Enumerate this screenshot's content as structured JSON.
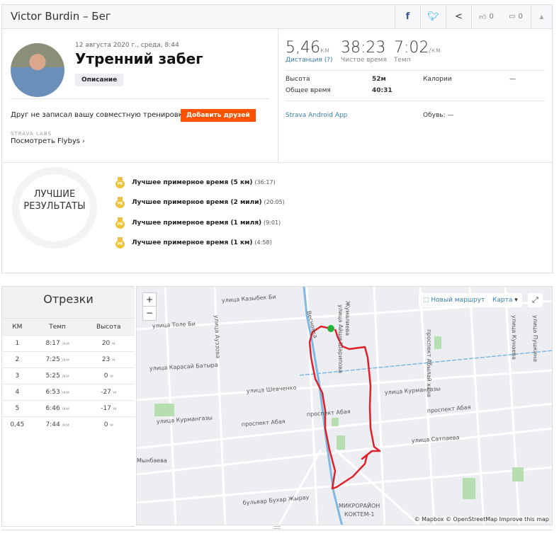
{
  "header": {
    "title": "Victor Burdin – Бег",
    "likes": "0",
    "comments": "0"
  },
  "activity": {
    "date": "12 августа 2020 г., среда, 8:44",
    "name": "Утренний забег",
    "description_label": "Описание",
    "friend_prompt": "Друг не записал вашу совместную тренировку?",
    "add_friends_label": "Добавить друзей",
    "labs_label": "STRAVA LABS",
    "flybys_label": "Посмотреть Flybys"
  },
  "stats": {
    "distance": "5,46",
    "distance_unit": "км",
    "distance_label": "Дистанция (?)",
    "moving_time": "38:23",
    "moving_time_label": "Чистое время",
    "pace": "7:02",
    "pace_unit": "/км",
    "pace_label": "Темп",
    "elevation_label": "Высота",
    "elevation": "52м",
    "calories_label": "Калории",
    "calories": "—",
    "elapsed_label": "Общее время",
    "elapsed": "40:31",
    "device": "Strava Android App",
    "shoes": "Обувь: —"
  },
  "achievements": {
    "badge_line1": "ЛУЧШИЕ",
    "badge_line2": "РЕЗУЛЬТАТЫ",
    "items": [
      {
        "label": "Лучшее примерное время (5 км)",
        "time": "(36:17)"
      },
      {
        "label": "Лучшее примерное время (2 мили)",
        "time": "(20:05)"
      },
      {
        "label": "Лучшее примерное время (1 миля)",
        "time": "(9:01)"
      },
      {
        "label": "Лучшее примерное время (1 км)",
        "time": "(4:58)"
      }
    ]
  },
  "splits": {
    "title": "Отрезки",
    "columns": [
      "КМ",
      "Темп",
      "Высота"
    ],
    "pace_unit": "/км",
    "elev_unit": "м",
    "rows": [
      {
        "km": "1",
        "pace": "8:17",
        "elev": "20"
      },
      {
        "km": "2",
        "pace": "7:25",
        "elev": "23"
      },
      {
        "km": "3",
        "pace": "5:25",
        "elev": "0"
      },
      {
        "km": "4",
        "pace": "6:53",
        "elev": "-27"
      },
      {
        "km": "5",
        "pace": "6:46",
        "elev": "-17"
      },
      {
        "km": "0,45",
        "pace": "7:44",
        "elev": "0"
      }
    ]
  },
  "map": {
    "zoom_in": "+",
    "zoom_out": "−",
    "new_route": "Новый маршрут",
    "map_type": "Карта",
    "attribution": "© Mapbox © OpenStreetMap Improve this map",
    "labels": [
      "улица Казыбек Би",
      "улица Толе Би",
      "улица Ауэзова",
      "улица Карасай Батыра",
      "улица Шевченко",
      "улица Курмангазы",
      "проспект Абая",
      "проспект Абая",
      "улица Курмангазы",
      "проспект Абая",
      "улица Сатпаева",
      "Мынбаева",
      "бульвар Бухар Жырау",
      "МИКРОРАЙОН",
      "КОКТЕМ-1",
      "Весновка",
      "улица Айши Шарипова",
      "проспект Абылай хана",
      "улица Кунаева",
      "улица Пушкина",
      "Жумалиева"
    ],
    "route_color": "#e0202a",
    "start_color": "#22b33a"
  }
}
